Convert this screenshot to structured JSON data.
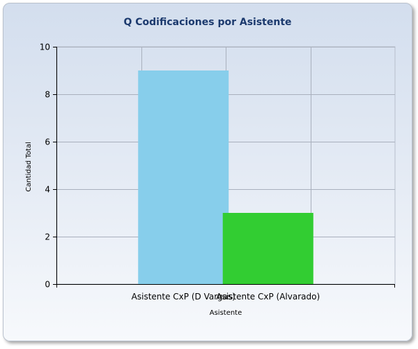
{
  "chart_data": {
    "type": "bar",
    "title": "Q Codificaciones por Asistente",
    "xlabel": "Asistente",
    "ylabel": "Cantidad Total",
    "ylim": [
      0,
      10
    ],
    "yticks": [
      0,
      2,
      4,
      6,
      8,
      10
    ],
    "grid": true,
    "legend": "none",
    "categories": [
      "Asistente CxP (D Vargas)",
      "Asistente CxP (Alvarado)"
    ],
    "values": [
      9,
      3
    ],
    "colors": [
      "#87ceeb",
      "#32cd32"
    ]
  }
}
